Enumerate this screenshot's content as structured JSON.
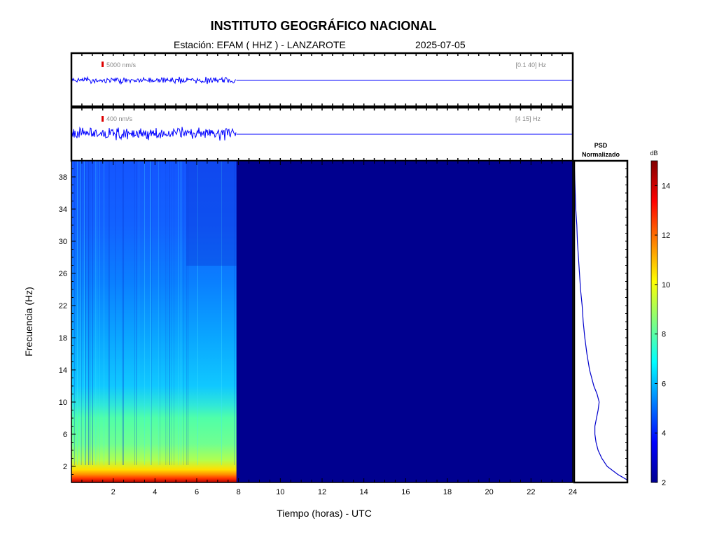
{
  "header": {
    "title": "INSTITUTO GEOGRÁFICO NACIONAL",
    "station_text": "Estación:  EFAM ( HHZ ) - LANZAROTE",
    "date_text": "2025-07-05"
  },
  "colors": {
    "trace": "#0000ff",
    "scale_marker": "#dd0000",
    "colormap": [
      "#00008f",
      "#0000ff",
      "#0080ff",
      "#00ffff",
      "#80ff80",
      "#ffff00",
      "#ff8000",
      "#ff0000",
      "#800000"
    ]
  },
  "traces": [
    {
      "scale_label": "5000 nm/s",
      "band_label": "[0.1 40] Hz",
      "data_end_hour": 7.9
    },
    {
      "scale_label": "400 nm/s",
      "band_label": "[4 15] Hz",
      "data_end_hour": 7.9
    }
  ],
  "psd": {
    "title_line1": "PSD",
    "title_line2": "Normalizado"
  },
  "colorbar": {
    "label": "dB",
    "min": 2,
    "max": 15,
    "ticks": [
      "2",
      "4",
      "6",
      "8",
      "10",
      "12",
      "14"
    ]
  },
  "chart_data": {
    "type": "heatmap",
    "title": "INSTITUTO GEOGRÁFICO NACIONAL",
    "xlabel": "Tiempo (horas) - UTC",
    "ylabel": "Frecuencia  (Hz)",
    "xlim": [
      0,
      24
    ],
    "ylim": [
      0,
      40
    ],
    "x_ticks": [
      "2",
      "4",
      "6",
      "8",
      "10",
      "12",
      "14",
      "16",
      "18",
      "20",
      "22",
      "24"
    ],
    "y_ticks": [
      "2",
      "6",
      "10",
      "14",
      "18",
      "22",
      "26",
      "30",
      "34",
      "38"
    ],
    "data_end_hour": 7.9,
    "no_data_value_db": 2.5,
    "psd_normalized": {
      "freq_hz": [
        0.3,
        1,
        2,
        3,
        4,
        5,
        6,
        7,
        8,
        9,
        10,
        11,
        12,
        14,
        16,
        18,
        20,
        22,
        24,
        26,
        28,
        30,
        32,
        34,
        36,
        38,
        40
      ],
      "value": [
        1.0,
        0.82,
        0.62,
        0.52,
        0.45,
        0.41,
        0.39,
        0.39,
        0.42,
        0.45,
        0.47,
        0.43,
        0.37,
        0.29,
        0.24,
        0.2,
        0.17,
        0.15,
        0.12,
        0.1,
        0.08,
        0.06,
        0.05,
        0.03,
        0.02,
        0.01,
        0.0
      ]
    }
  }
}
